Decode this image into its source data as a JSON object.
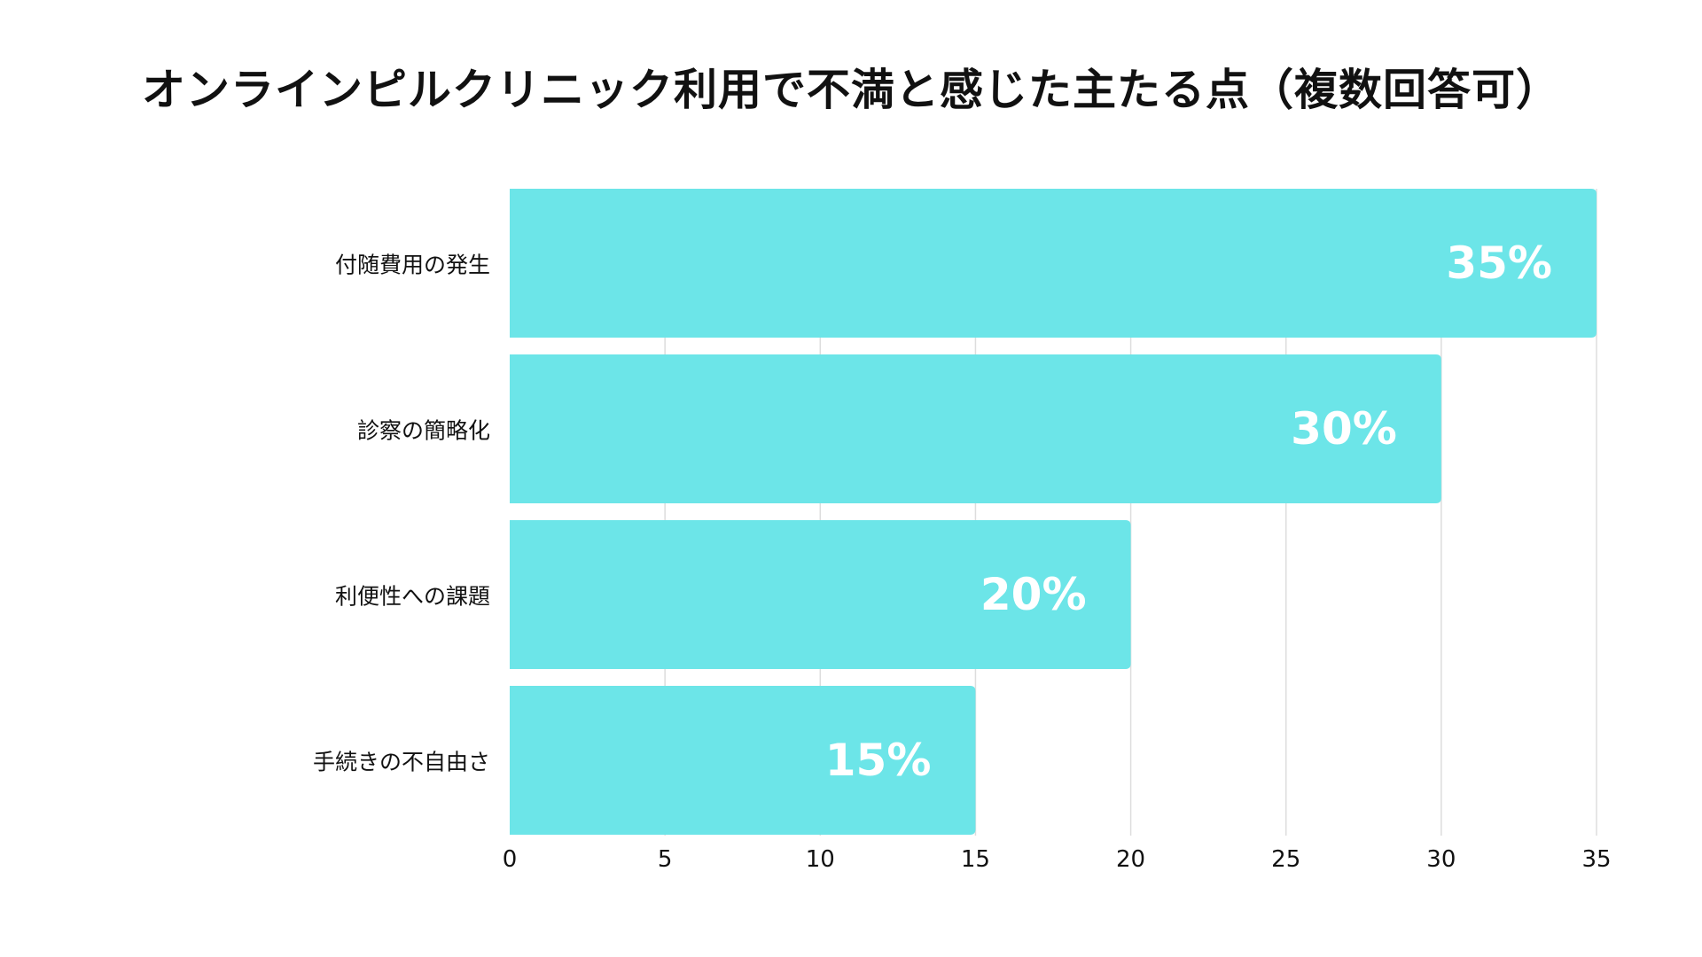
{
  "chart_data": {
    "type": "bar",
    "orientation": "horizontal",
    "title": "オンラインピルクリニック利用で不満と感じた主たる点（複数回答可）",
    "categories": [
      "付随費用の発生",
      "診察の簡略化",
      "利便性への課題",
      "手続きの不自由さ"
    ],
    "values": [
      35,
      30,
      20,
      15
    ],
    "data_labels": [
      "35%",
      "30%",
      "20%",
      "15%"
    ],
    "xlabel": "",
    "ylabel": "",
    "xlim": [
      0,
      35
    ],
    "x_ticks": [
      0,
      5,
      10,
      15,
      20,
      25,
      30,
      35
    ],
    "x_tick_labels": [
      "0",
      "5",
      "10",
      "15",
      "20",
      "25",
      "30",
      "35"
    ],
    "grid": "vertical",
    "legend": "none",
    "bar_color": "#6ce5e8",
    "grid_color": "#dddddd"
  }
}
